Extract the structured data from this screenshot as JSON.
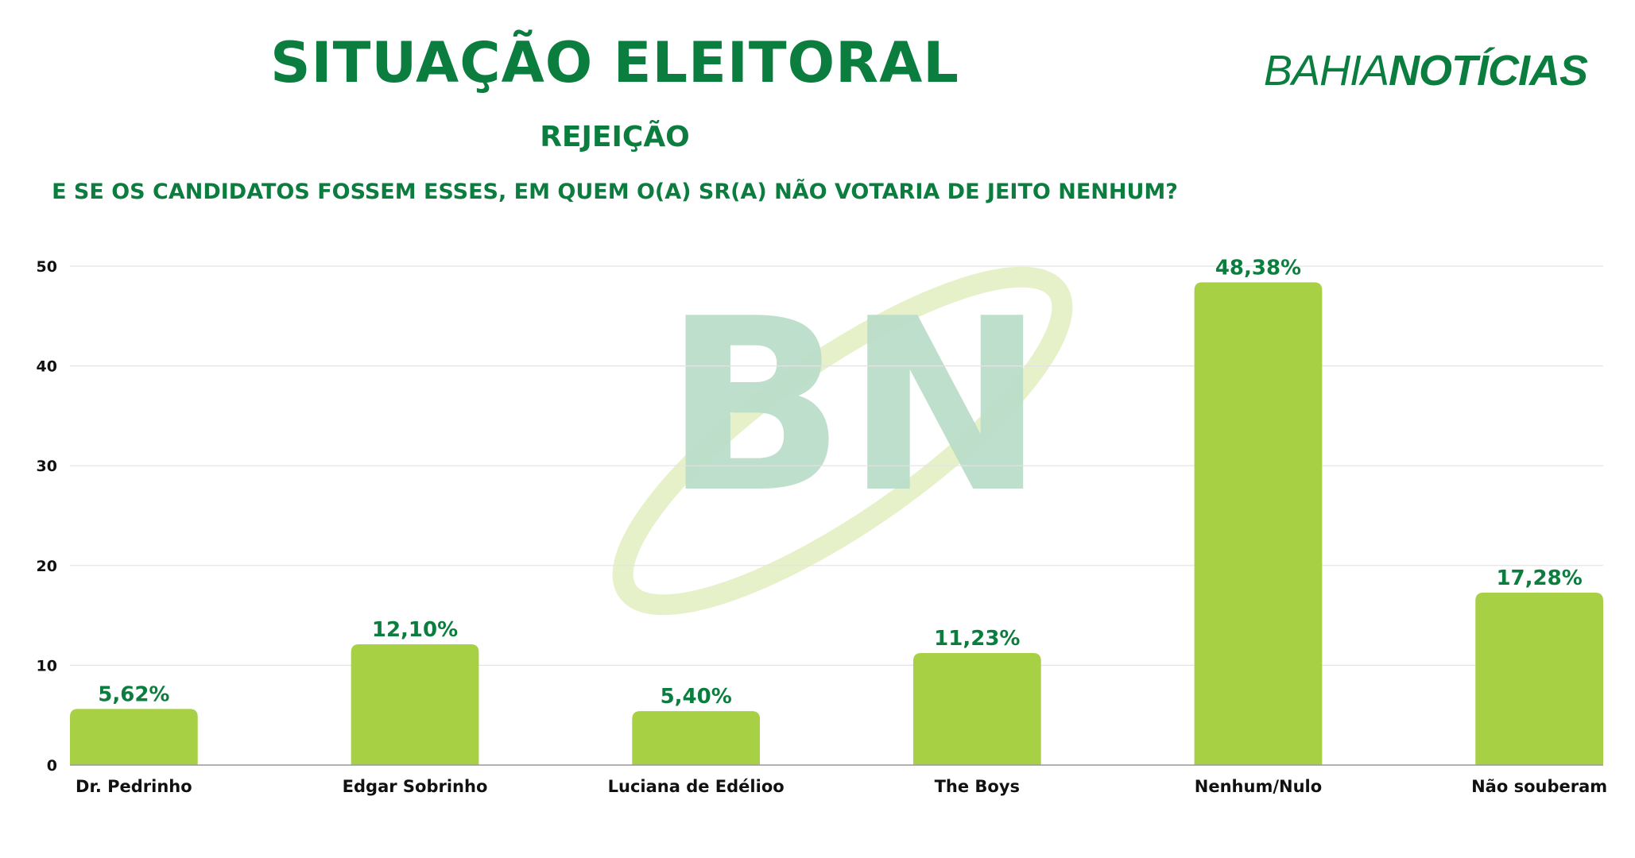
{
  "header": {
    "title": "SITUAÇÃO ELEITORAL",
    "subtitle": "REJEIÇÃO",
    "question": "E SE OS CANDIDATOS FOSSEM ESSES, EM QUEM O(A) SR(A) NÃO VOTARIA DE JEITO NENHUM?"
  },
  "logo": {
    "part1": "BAHIA",
    "part2": "NOTÍCIAS",
    "watermark": "BN"
  },
  "colors": {
    "bar": "#a8d044",
    "text": "#0b7d3e",
    "watermark_letters": "#b9dcc8",
    "watermark_swoosh": "#e6f1c9"
  },
  "chart_data": {
    "type": "bar",
    "categories": [
      "Dr. Pedrinho",
      "Edgar Sobrinho",
      "Luciana de Edélioo",
      "The Boys",
      "Nenhum/Nulo",
      "Não souberam"
    ],
    "values": [
      5.62,
      12.1,
      5.4,
      11.23,
      48.38,
      17.28
    ],
    "data_labels": [
      "5,62%",
      "12,10%",
      "5,40%",
      "11,23%",
      "48,38%",
      "17,28%"
    ],
    "yticks": [
      0,
      10,
      20,
      30,
      40,
      50
    ],
    "ylim": [
      0,
      50
    ],
    "grid": true
  }
}
